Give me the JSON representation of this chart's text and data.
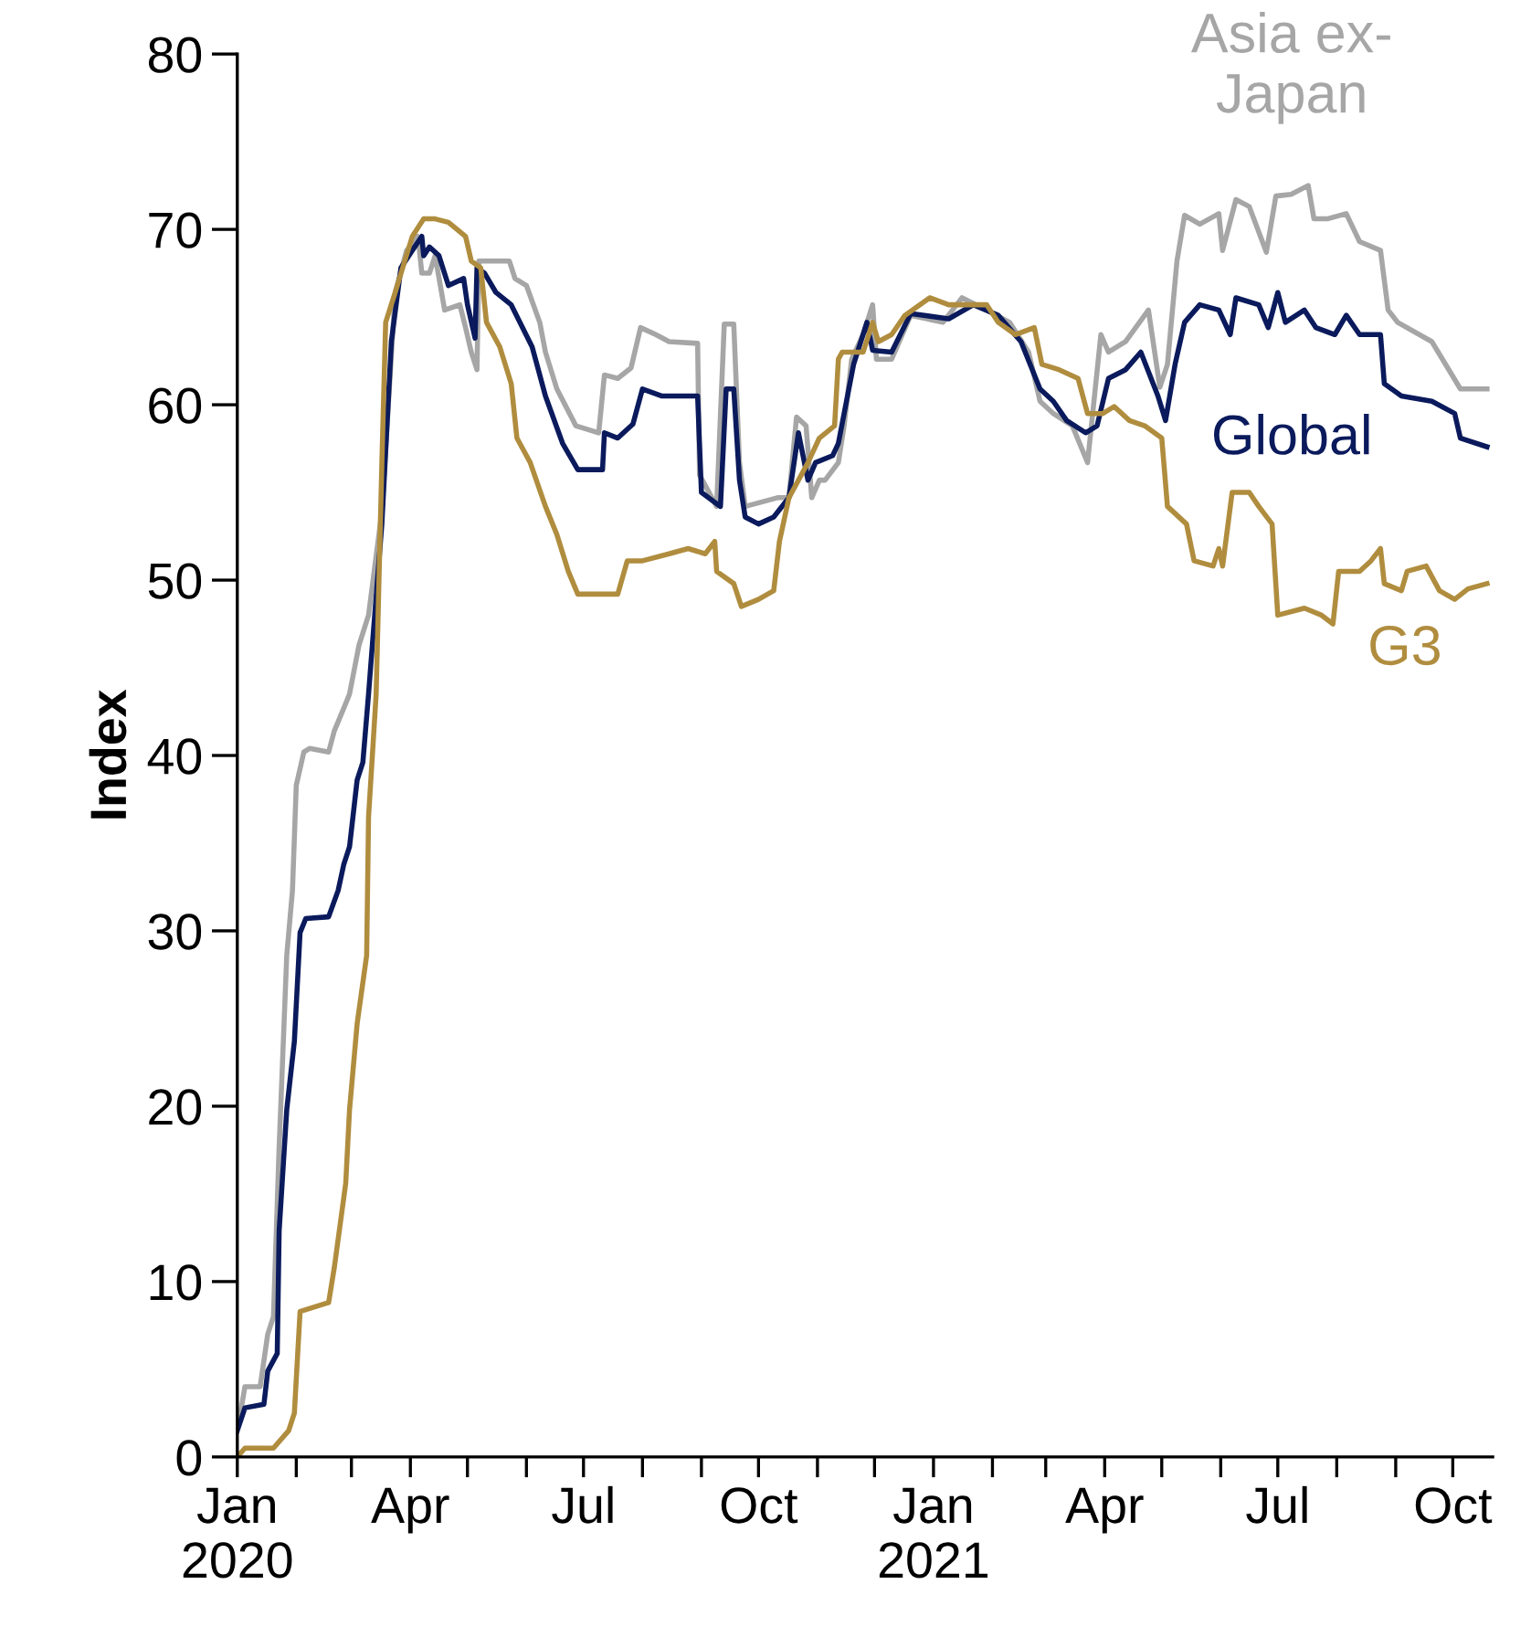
{
  "chart_data": {
    "type": "line",
    "ylabel": "Index",
    "xlim": [
      "2020-01-01",
      "2021-10-22"
    ],
    "ylim": [
      0,
      80
    ],
    "yticks": [
      0,
      10,
      20,
      30,
      40,
      50,
      60,
      70,
      80
    ],
    "xticks": [
      {
        "value": "2020-01-01",
        "label": "Jan\n2020"
      },
      {
        "value": "2020-02-01",
        "label": null
      },
      {
        "value": "2020-03-01",
        "label": null
      },
      {
        "value": "2020-04-01",
        "label": "Apr"
      },
      {
        "value": "2020-05-01",
        "label": null
      },
      {
        "value": "2020-06-01",
        "label": null
      },
      {
        "value": "2020-07-01",
        "label": "Jul"
      },
      {
        "value": "2020-08-01",
        "label": null
      },
      {
        "value": "2020-09-01",
        "label": null
      },
      {
        "value": "2020-10-01",
        "label": "Oct"
      },
      {
        "value": "2020-11-01",
        "label": null
      },
      {
        "value": "2020-12-01",
        "label": null
      },
      {
        "value": "2021-01-01",
        "label": "Jan\n2021"
      },
      {
        "value": "2021-02-01",
        "label": null
      },
      {
        "value": "2021-03-01",
        "label": null
      },
      {
        "value": "2021-04-01",
        "label": "Apr"
      },
      {
        "value": "2021-05-01",
        "label": null
      },
      {
        "value": "2021-06-01",
        "label": null
      },
      {
        "value": "2021-07-01",
        "label": "Jul"
      },
      {
        "value": "2021-08-01",
        "label": null
      },
      {
        "value": "2021-09-01",
        "label": null
      },
      {
        "value": "2021-10-01",
        "label": "Oct"
      }
    ],
    "grid": false,
    "legend": false,
    "marker": "none",
    "line_style": "solid",
    "series": [
      {
        "name": "Asia ex-\nJapan",
        "color": "#a6a6a6",
        "x": [
          "2020-01-02",
          "2020-01-05",
          "2020-01-13",
          "2020-01-17",
          "2020-01-20",
          "2020-01-23",
          "2020-01-27",
          "2020-01-30",
          "2020-02-01",
          "2020-02-05",
          "2020-02-08",
          "2020-02-18",
          "2020-02-21",
          "2020-02-26",
          "2020-02-29",
          "2020-03-05",
          "2020-03-10",
          "2020-03-17",
          "2020-03-24",
          "2020-03-30",
          "2020-04-05",
          "2020-04-07",
          "2020-04-11",
          "2020-04-14",
          "2020-04-19",
          "2020-04-27",
          "2020-04-30",
          "2020-05-03",
          "2020-05-06",
          "2020-05-07",
          "2020-05-13",
          "2020-05-23",
          "2020-05-26",
          "2020-06-01",
          "2020-06-08",
          "2020-06-11",
          "2020-06-17",
          "2020-06-27",
          "2020-07-09",
          "2020-07-12",
          "2020-07-19",
          "2020-07-26",
          "2020-07-31",
          "2020-08-08",
          "2020-08-15",
          "2020-08-30",
          "2020-08-31",
          "2020-09-09",
          "2020-09-13",
          "2020-09-18",
          "2020-09-21",
          "2020-09-24",
          "2020-10-11",
          "2020-10-17",
          "2020-10-21",
          "2020-10-26",
          "2020-10-29",
          "2020-11-02",
          "2020-11-05",
          "2020-11-12",
          "2020-11-15",
          "2020-11-19",
          "2020-11-25",
          "2020-11-30",
          "2020-12-02",
          "2020-12-10",
          "2020-12-20",
          "2021-01-06",
          "2021-01-16",
          "2021-01-29",
          "2021-02-10",
          "2021-02-20",
          "2021-02-26",
          "2021-03-05",
          "2021-03-15",
          "2021-03-23",
          "2021-03-30",
          "2021-04-03",
          "2021-04-12",
          "2021-04-24",
          "2021-04-30",
          "2021-05-04",
          "2021-05-09",
          "2021-05-13",
          "2021-05-21",
          "2021-05-31",
          "2021-06-02",
          "2021-06-09",
          "2021-06-16",
          "2021-06-25",
          "2021-06-30",
          "2021-07-08",
          "2021-07-17",
          "2021-07-20",
          "2021-07-27",
          "2021-08-06",
          "2021-08-13",
          "2021-08-24",
          "2021-08-28",
          "2021-09-02",
          "2021-09-20",
          "2021-10-05",
          "2021-10-19"
        ],
        "values": [
          2.1,
          4.0,
          4.0,
          7.0,
          8.0,
          17.7,
          28.6,
          32.3,
          38.3,
          40.2,
          40.4,
          40.2,
          41.4,
          42.7,
          43.5,
          46.3,
          48.0,
          53.9,
          66.4,
          68.8,
          69.6,
          67.5,
          67.5,
          68.5,
          65.4,
          65.7,
          64.4,
          63.0,
          62.0,
          68.2,
          68.2,
          68.2,
          67.2,
          66.8,
          64.7,
          63.0,
          60.9,
          58.8,
          58.4,
          61.7,
          61.5,
          62.1,
          64.4,
          64.0,
          63.6,
          63.5,
          56.0,
          54.2,
          64.6,
          64.6,
          56.7,
          54.2,
          54.7,
          54.7,
          59.3,
          58.8,
          54.7,
          55.7,
          55.7,
          56.7,
          58.8,
          62.6,
          64.0,
          65.7,
          62.6,
          62.6,
          65.1,
          64.7,
          66.1,
          65.4,
          64.7,
          63.0,
          60.2,
          59.5,
          58.8,
          56.7,
          64.0,
          63.0,
          63.6,
          65.4,
          61.0,
          62.3,
          68.2,
          70.8,
          70.3,
          70.9,
          68.8,
          71.7,
          71.3,
          68.7,
          71.9,
          72.0,
          72.5,
          70.6,
          70.6,
          70.9,
          69.3,
          68.8,
          65.4,
          64.7,
          63.6,
          60.9,
          60.9
        ]
      },
      {
        "name": "Global",
        "color": "#0a1a5c",
        "x": [
          "2020-01-01",
          "2020-01-05",
          "2020-01-15",
          "2020-01-17",
          "2020-01-22",
          "2020-01-23",
          "2020-01-27",
          "2020-01-31",
          "2020-02-03",
          "2020-02-06",
          "2020-02-18",
          "2020-02-23",
          "2020-02-26",
          "2020-02-29",
          "2020-03-04",
          "2020-03-07",
          "2020-03-10",
          "2020-03-12",
          "2020-03-17",
          "2020-03-22",
          "2020-03-27",
          "2020-04-02",
          "2020-04-07",
          "2020-04-08",
          "2020-04-11",
          "2020-04-16",
          "2020-04-21",
          "2020-04-29",
          "2020-05-01",
          "2020-05-05",
          "2020-05-06",
          "2020-05-10",
          "2020-05-16",
          "2020-05-24",
          "2020-06-04",
          "2020-06-11",
          "2020-06-20",
          "2020-06-28",
          "2020-07-11",
          "2020-07-12",
          "2020-07-19",
          "2020-07-27",
          "2020-08-01",
          "2020-08-11",
          "2020-08-30",
          "2020-09-01",
          "2020-09-11",
          "2020-09-14",
          "2020-09-18",
          "2020-09-21",
          "2020-09-24",
          "2020-10-01",
          "2020-10-09",
          "2020-10-17",
          "2020-10-22",
          "2020-10-27",
          "2020-10-31",
          "2020-11-09",
          "2020-11-12",
          "2020-11-15",
          "2020-11-20",
          "2020-11-27",
          "2020-11-30",
          "2020-12-10",
          "2020-12-20",
          "2021-01-09",
          "2021-01-22",
          "2021-02-04",
          "2021-02-16",
          "2021-02-26",
          "2021-03-05",
          "2021-03-12",
          "2021-03-22",
          "2021-03-28",
          "2021-04-03",
          "2021-04-12",
          "2021-04-20",
          "2021-04-29",
          "2021-05-03",
          "2021-05-08",
          "2021-05-13",
          "2021-05-21",
          "2021-05-31",
          "2021-06-06",
          "2021-06-09",
          "2021-06-21",
          "2021-06-26",
          "2021-07-01",
          "2021-07-05",
          "2021-07-15",
          "2021-07-21",
          "2021-07-31",
          "2021-08-06",
          "2021-08-13",
          "2021-08-24",
          "2021-08-26",
          "2021-09-04",
          "2021-09-20",
          "2021-10-02",
          "2021-10-05",
          "2021-10-19"
        ],
        "values": [
          1.5,
          2.8,
          3.0,
          4.9,
          5.9,
          12.9,
          19.8,
          23.7,
          29.9,
          30.7,
          30.8,
          32.3,
          33.8,
          34.8,
          38.6,
          39.6,
          43.5,
          46.3,
          53.2,
          63.6,
          67.8,
          68.8,
          69.6,
          68.5,
          69.0,
          68.5,
          66.8,
          67.2,
          65.7,
          63.8,
          67.8,
          67.5,
          66.4,
          65.7,
          63.3,
          60.5,
          57.8,
          56.3,
          56.3,
          58.4,
          58.1,
          58.9,
          60.9,
          60.5,
          60.5,
          55.0,
          54.2,
          60.9,
          60.9,
          55.7,
          53.6,
          53.2,
          53.6,
          54.7,
          58.4,
          55.7,
          56.7,
          57.1,
          57.8,
          59.5,
          62.3,
          64.7,
          63.1,
          63.0,
          65.2,
          64.9,
          65.7,
          65.1,
          63.6,
          60.9,
          60.2,
          59.1,
          58.4,
          58.8,
          61.5,
          62.0,
          63.0,
          60.5,
          59.1,
          62.3,
          64.7,
          65.7,
          65.4,
          64.0,
          66.1,
          65.7,
          64.4,
          66.4,
          64.7,
          65.4,
          64.4,
          64.0,
          65.1,
          64.0,
          64.0,
          61.2,
          60.5,
          60.2,
          59.5,
          58.1,
          57.6
        ]
      },
      {
        "name": "G3",
        "color": "#b08d3e",
        "x": [
          "2020-01-01",
          "2020-01-05",
          "2020-01-20",
          "2020-01-28",
          "2020-01-31",
          "2020-02-03",
          "2020-02-18",
          "2020-02-21",
          "2020-02-25",
          "2020-02-27",
          "2020-02-29",
          "2020-03-04",
          "2020-03-09",
          "2020-03-10",
          "2020-03-14",
          "2020-03-17",
          "2020-03-19",
          "2020-03-24",
          "2020-04-02",
          "2020-04-08",
          "2020-04-14",
          "2020-04-21",
          "2020-04-30",
          "2020-05-03",
          "2020-05-08",
          "2020-05-11",
          "2020-05-18",
          "2020-05-24",
          "2020-05-27",
          "2020-06-03",
          "2020-06-11",
          "2020-06-17",
          "2020-06-23",
          "2020-06-28",
          "2020-07-19",
          "2020-07-24",
          "2020-08-01",
          "2020-08-15",
          "2020-08-25",
          "2020-09-03",
          "2020-09-08",
          "2020-09-09",
          "2020-09-18",
          "2020-09-22",
          "2020-10-01",
          "2020-10-09",
          "2020-10-12",
          "2020-10-17",
          "2020-10-27",
          "2020-11-02",
          "2020-11-10",
          "2020-11-12",
          "2020-11-14",
          "2020-11-25",
          "2020-11-30",
          "2020-12-03",
          "2020-12-10",
          "2020-12-17",
          "2020-12-30",
          "2021-01-09",
          "2021-01-29",
          "2021-02-04",
          "2021-02-13",
          "2021-02-23",
          "2021-02-27",
          "2021-03-08",
          "2021-03-18",
          "2021-03-23",
          "2021-03-31",
          "2021-04-06",
          "2021-04-14",
          "2021-04-22",
          "2021-05-01",
          "2021-05-04",
          "2021-05-14",
          "2021-05-18",
          "2021-05-28",
          "2021-05-31",
          "2021-06-02",
          "2021-06-07",
          "2021-06-16",
          "2021-06-21",
          "2021-06-28",
          "2021-07-01",
          "2021-07-15",
          "2021-07-24",
          "2021-07-30",
          "2021-08-02",
          "2021-08-13",
          "2021-08-19",
          "2021-08-24",
          "2021-08-26",
          "2021-09-04",
          "2021-09-07",
          "2021-09-17",
          "2021-09-24",
          "2021-10-02",
          "2021-10-09",
          "2021-10-19"
        ],
        "values": [
          0,
          0.5,
          0.5,
          1.5,
          2.5,
          8.3,
          8.8,
          10.8,
          14.0,
          15.6,
          19.8,
          24.7,
          28.6,
          36.5,
          43.5,
          56.7,
          64.7,
          66.4,
          69.6,
          70.6,
          70.6,
          70.4,
          69.6,
          68.2,
          67.8,
          64.7,
          63.3,
          61.2,
          58.1,
          56.7,
          54.2,
          52.6,
          50.5,
          49.2,
          49.2,
          51.1,
          51.1,
          51.5,
          51.8,
          51.5,
          52.2,
          50.5,
          49.8,
          48.5,
          48.9,
          49.4,
          52.2,
          54.7,
          56.7,
          58.1,
          58.8,
          62.6,
          63.0,
          63.0,
          64.7,
          63.6,
          64.0,
          65.1,
          66.1,
          65.7,
          65.7,
          64.7,
          64.0,
          64.4,
          62.3,
          62.0,
          61.5,
          59.5,
          59.5,
          59.9,
          59.1,
          58.8,
          58.1,
          54.2,
          53.2,
          51.1,
          50.8,
          51.8,
          50.8,
          55.0,
          55.0,
          54.2,
          53.2,
          48.0,
          48.4,
          48.0,
          47.5,
          50.5,
          50.5,
          51.1,
          51.8,
          49.8,
          49.4,
          50.5,
          50.8,
          49.4,
          48.9,
          49.5,
          49.8
        ]
      }
    ]
  }
}
